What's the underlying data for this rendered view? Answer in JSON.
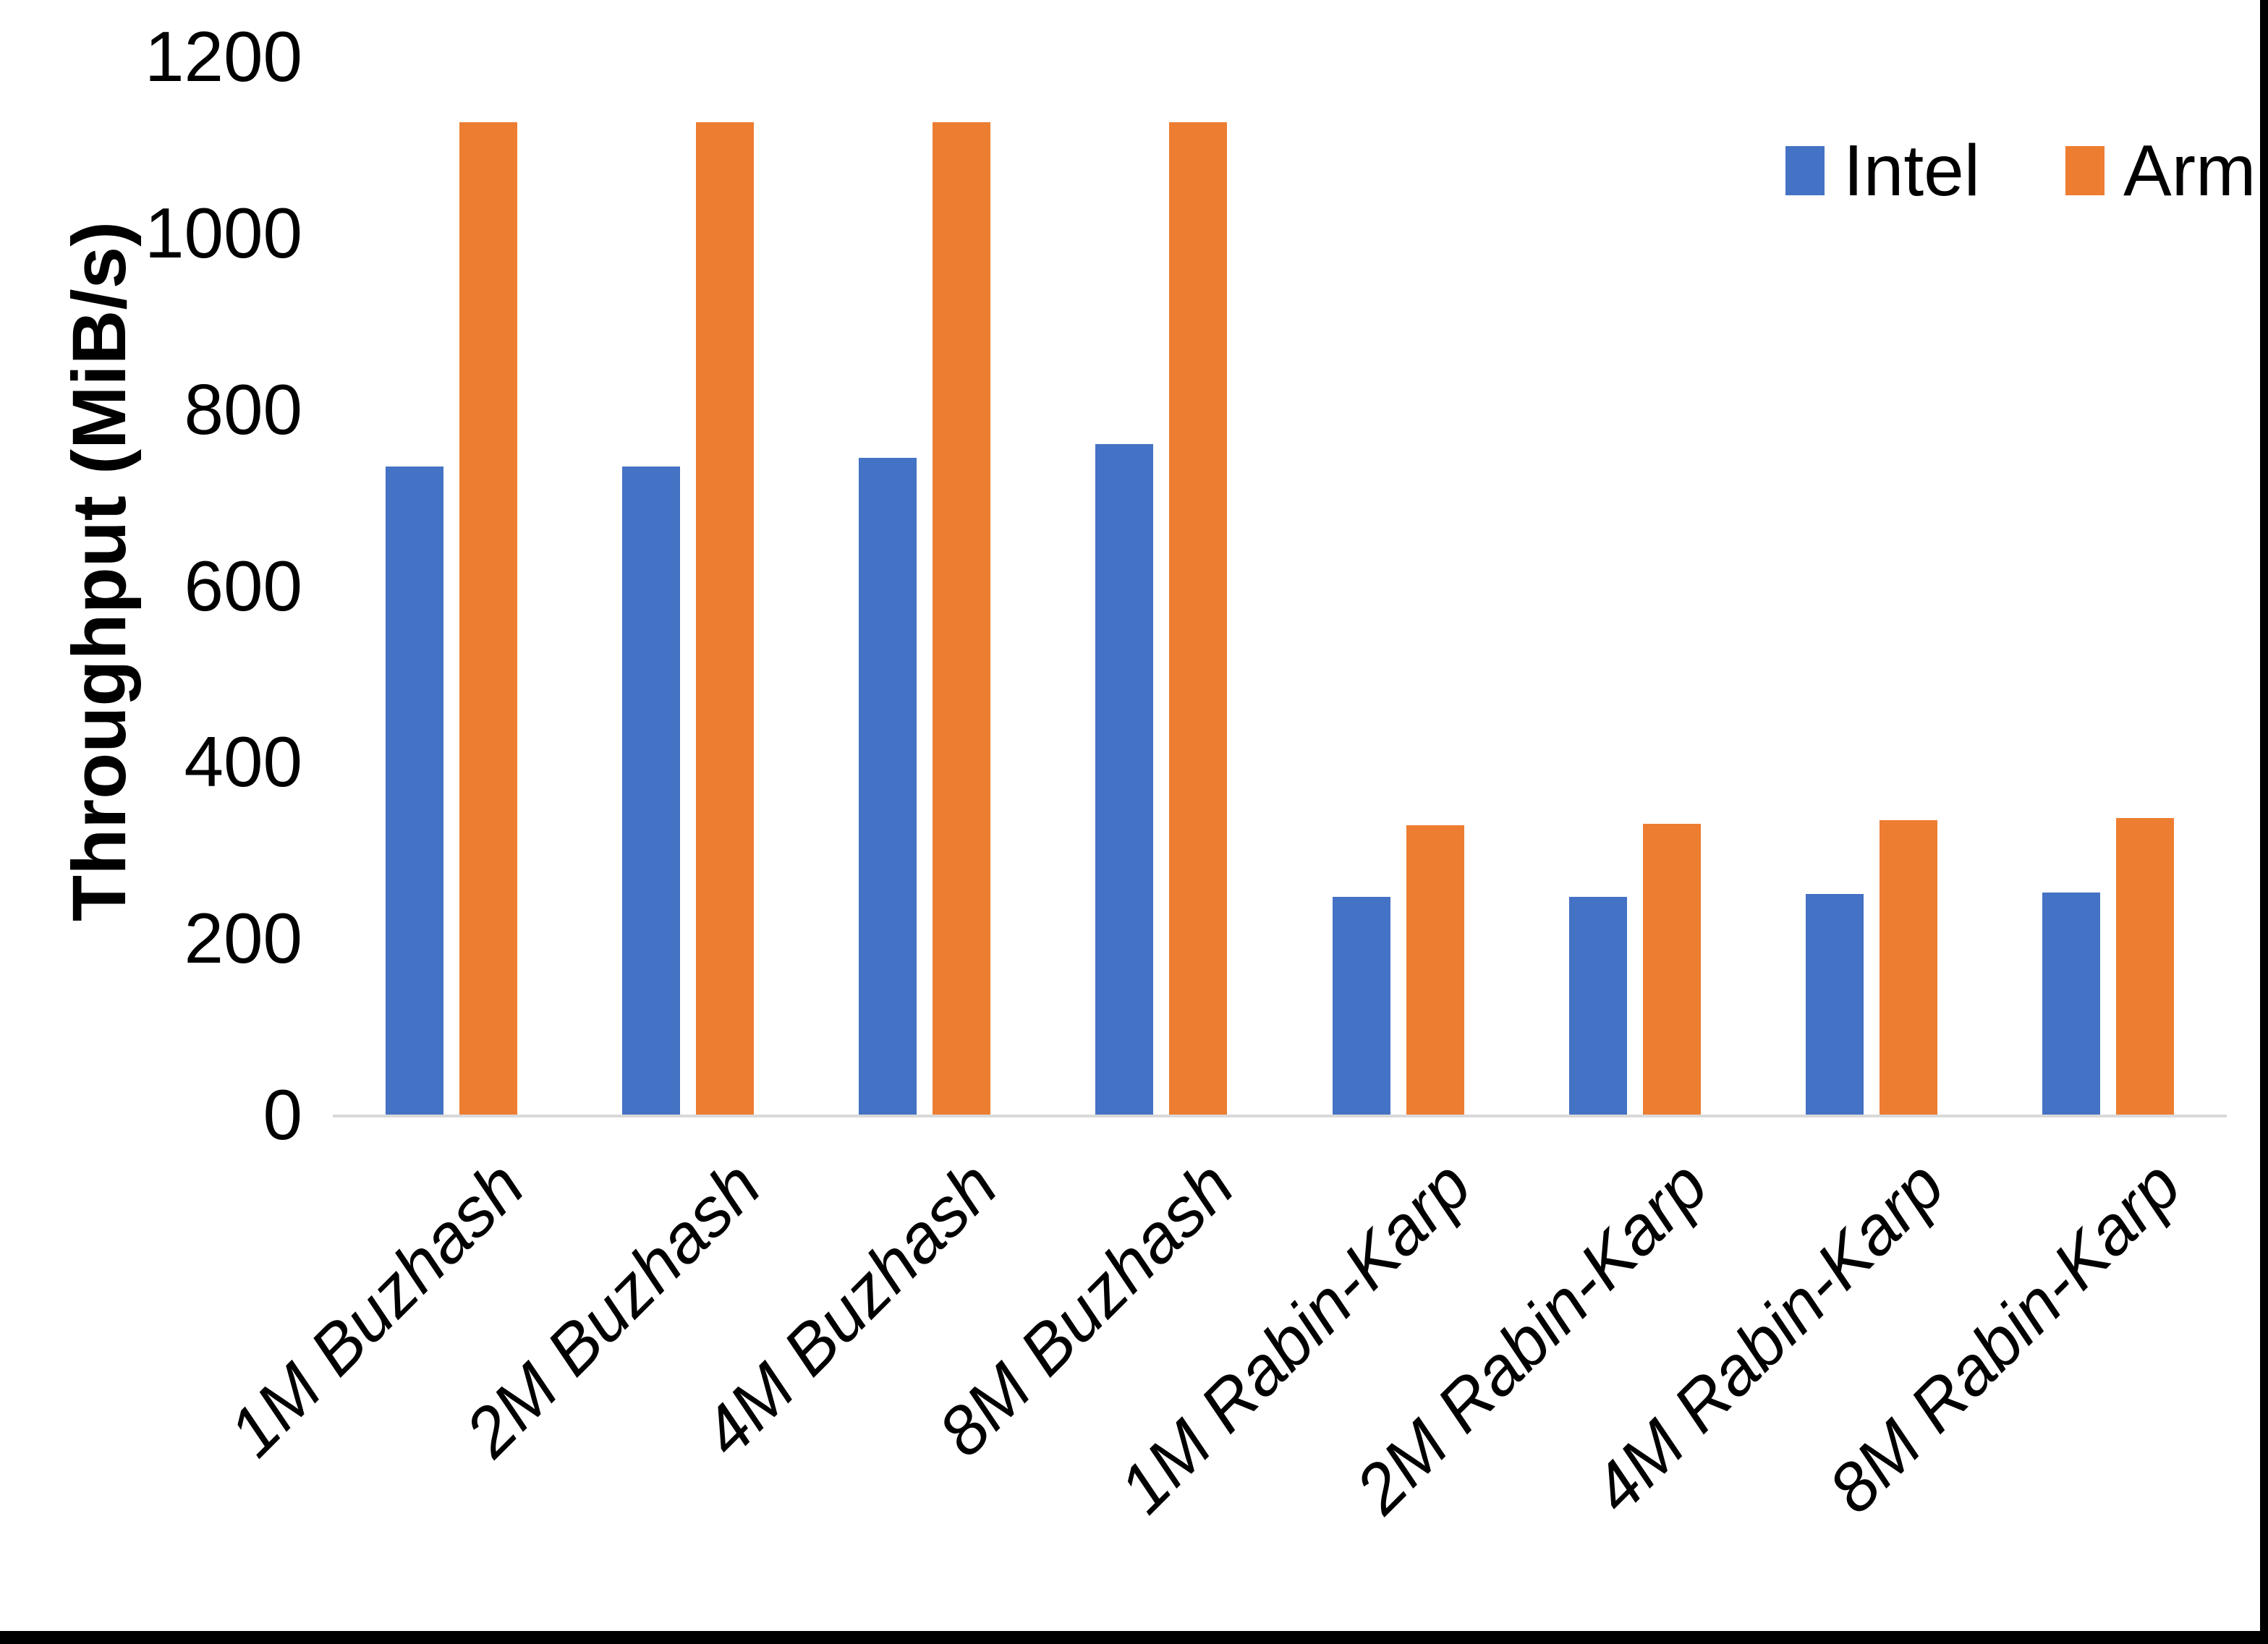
{
  "chart_data": {
    "type": "bar",
    "title": "",
    "xlabel": "",
    "ylabel": "Throughput (MiB/s)",
    "ylim": [
      0,
      1200
    ],
    "yticks": [
      0,
      200,
      400,
      600,
      800,
      1000,
      1200
    ],
    "grid": false,
    "legend_position": "top-right",
    "categories": [
      "1M Buzhash",
      "2M Buzhash",
      "4M Buzhash",
      "8M Buzhash",
      "1M Rabin-Karp",
      "2M Rabin-Karp",
      "4M Rabin-Karp",
      "8M Rabin-Karp"
    ],
    "series": [
      {
        "name": "Intel",
        "color": "#4472C4",
        "values": [
          735,
          735,
          745,
          760,
          247,
          247,
          250,
          252
        ]
      },
      {
        "name": "Arm",
        "color": "#ED7D31",
        "values": [
          1125,
          1125,
          1125,
          1125,
          328,
          330,
          334,
          336
        ]
      }
    ]
  },
  "colors": {
    "background": "#FFFFFF",
    "axis_line": "#D9D9D9",
    "text": "#000000",
    "crop_border": "#000000"
  }
}
